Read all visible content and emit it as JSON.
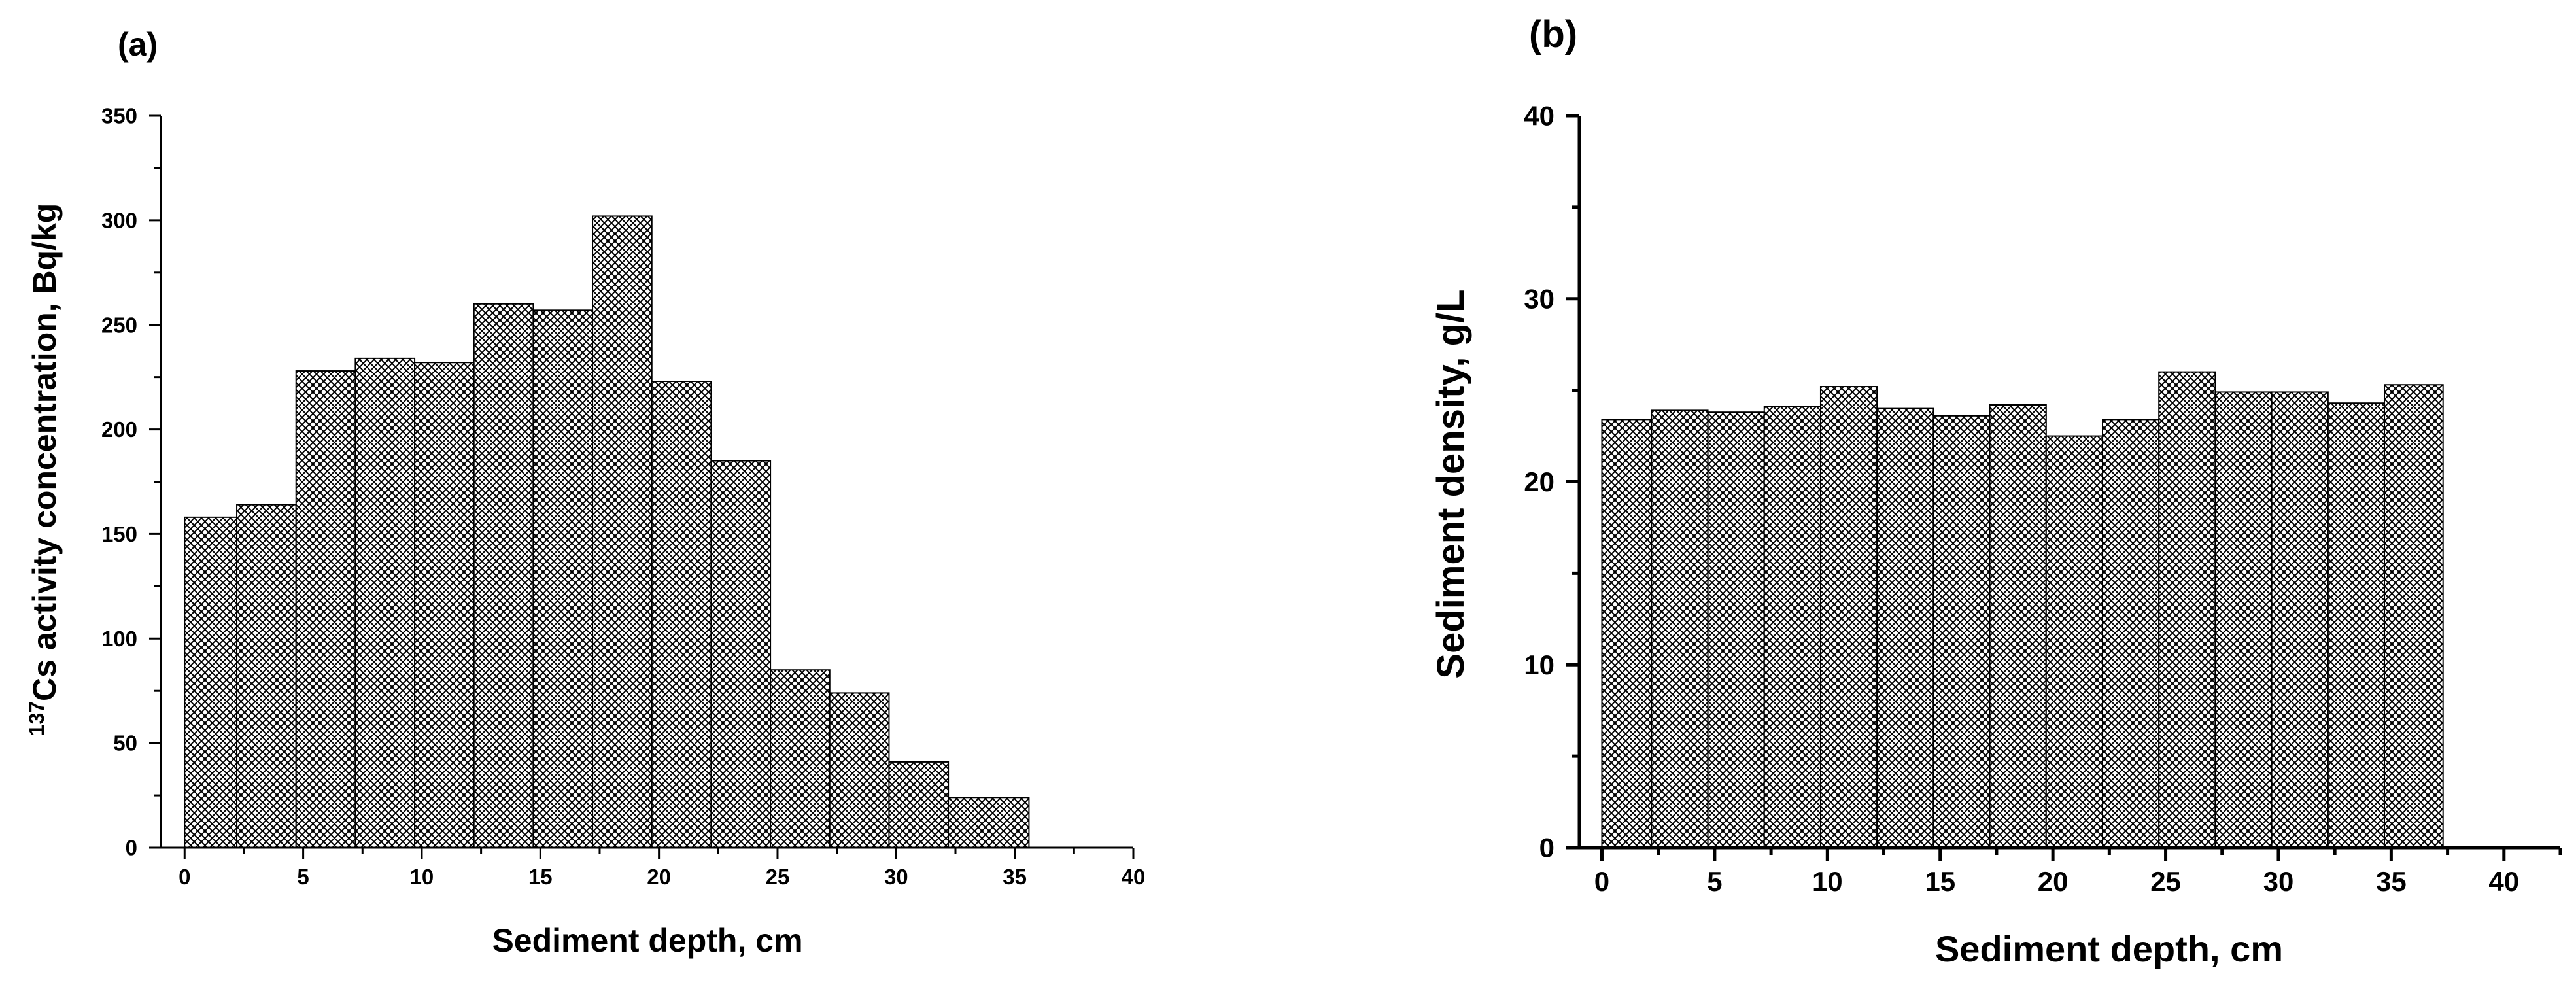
{
  "chart_data": [
    {
      "type": "bar",
      "panel_label": "(a)",
      "xlabel": "Sediment depth, cm",
      "ylabel_superscript": "137",
      "ylabel": "Cs activity concentration, Bq/kg",
      "xlim": [
        -1,
        40
      ],
      "ylim": [
        0,
        350
      ],
      "xticks": [
        0,
        5,
        10,
        15,
        20,
        25,
        30,
        35,
        40
      ],
      "yticks": [
        0,
        50,
        100,
        150,
        200,
        250,
        300,
        350
      ],
      "bin_edges": [
        0,
        2.2,
        4.7,
        7.2,
        9.7,
        12.2,
        14.7,
        17.2,
        19.7,
        22.2,
        24.7,
        27.2,
        29.7,
        32.2,
        35.6
      ],
      "values": [
        158,
        164,
        228,
        234,
        232,
        260,
        257,
        302,
        223,
        185,
        85,
        74,
        41,
        24
      ],
      "fill": "crosshatch",
      "grid": false
    },
    {
      "type": "bar",
      "panel_label": "(b)",
      "xlabel": "Sediment depth, cm",
      "ylabel": "Sediment density, g/L",
      "xlim": [
        -1,
        42.5
      ],
      "ylim": [
        0,
        40
      ],
      "xticks": [
        0,
        5,
        10,
        15,
        20,
        25,
        30,
        35,
        40
      ],
      "yticks": [
        0,
        10,
        20,
        30,
        40
      ],
      "bin_edges": [
        0,
        2.2,
        4.7,
        7.2,
        9.7,
        12.2,
        14.7,
        17.2,
        19.7,
        22.2,
        24.7,
        27.2,
        29.7,
        32.2,
        34.7,
        37.3
      ],
      "values": [
        23.4,
        23.9,
        23.8,
        24.1,
        25.2,
        24.0,
        23.6,
        24.2,
        22.5,
        23.4,
        26.0,
        24.9,
        24.9,
        24.3,
        25.3
      ],
      "fill": "crosshatch",
      "grid": false
    }
  ],
  "colors": {
    "bar_fill": "#ffffff",
    "hatch": "#000000",
    "axis": "#000000"
  }
}
